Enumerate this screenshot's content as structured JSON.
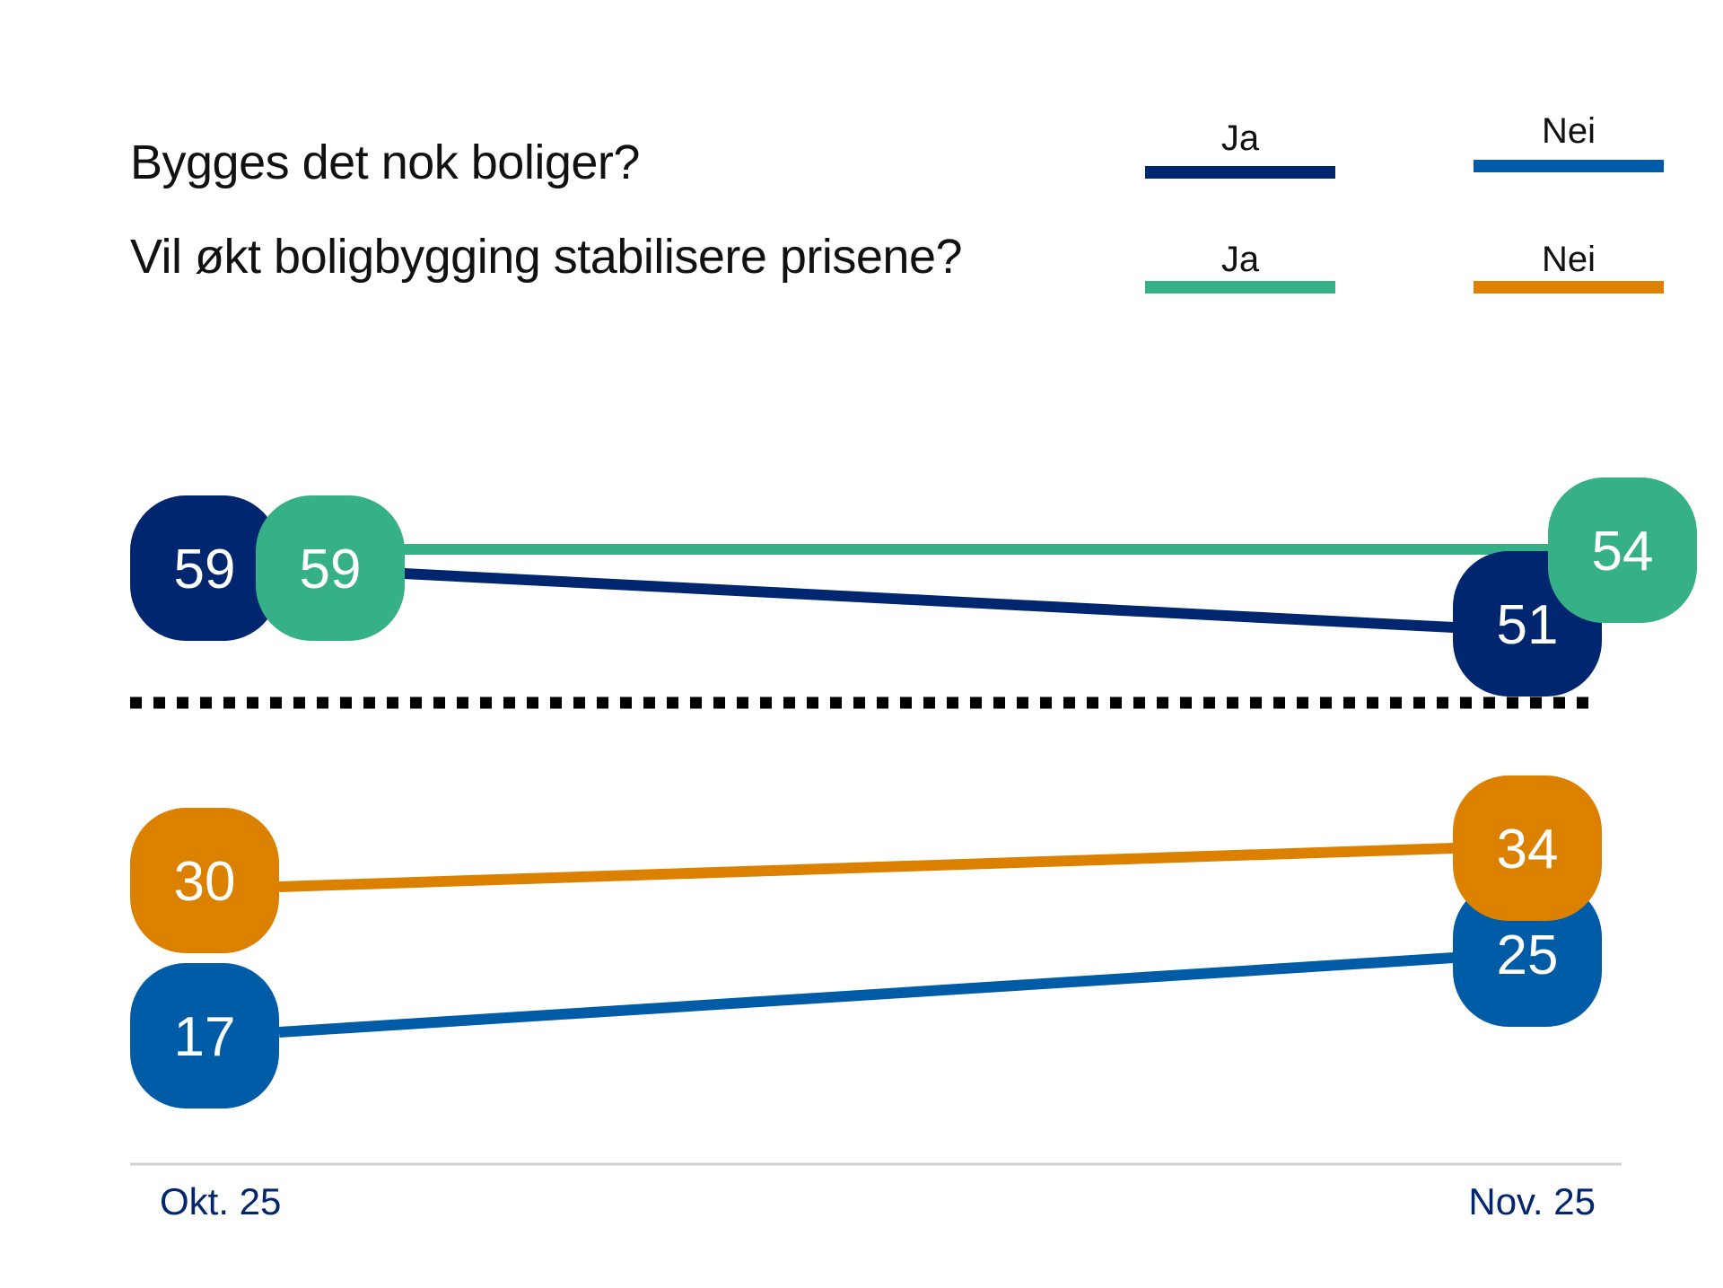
{
  "chart_data": {
    "type": "line",
    "categories": [
      "Okt. 25",
      "Nov. 25"
    ],
    "questions": [
      {
        "title": "Bygges det nok boliger?",
        "series": [
          {
            "name": "Ja",
            "color": "#00266f",
            "values": [
              59,
              51
            ]
          },
          {
            "name": "Nei",
            "color": "#005ca6",
            "values": [
              17,
              25
            ]
          }
        ]
      },
      {
        "title": "Vil økt boligbygging stabilisere prisene?",
        "series": [
          {
            "name": "Ja",
            "color": "#35b087",
            "values": [
              59,
              54
            ]
          },
          {
            "name": "Nei",
            "color": "#dc8000",
            "values": [
              30,
              34
            ]
          }
        ]
      }
    ],
    "divider": "dotted",
    "legend_placement": "top-right",
    "grid": false
  }
}
